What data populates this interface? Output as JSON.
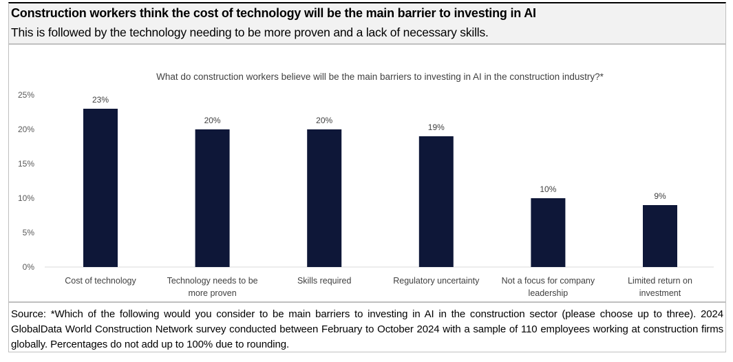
{
  "header": {
    "title": "Construction workers think the cost of technology will be the main barrier to investing in AI",
    "subtitle": "This is followed by the technology needing to be more proven and a lack of necessary skills."
  },
  "chart_data": {
    "type": "bar",
    "title": "What do construction workers believe will be the main barriers to investing in AI in the construction industry?*",
    "categories": [
      [
        "Cost of technology"
      ],
      [
        "Technology needs to be",
        "more proven"
      ],
      [
        "Skills required"
      ],
      [
        "Regulatory uncertainty"
      ],
      [
        "Not a focus for company",
        "leadership"
      ],
      [
        "Limited return on",
        "investment"
      ]
    ],
    "values": [
      23,
      20,
      20,
      19,
      10,
      9
    ],
    "data_labels": [
      "23%",
      "20%",
      "20%",
      "19%",
      "10%",
      "9%"
    ],
    "yticks": [
      "0%",
      "5%",
      "10%",
      "15%",
      "20%",
      "25%"
    ],
    "ylim": [
      0,
      25
    ],
    "grid": false,
    "bar_color": "#0e1738"
  },
  "footer": {
    "source": "Source: *Which of the following would you consider to be main barriers to investing in AI in the construction sector (please choose up to three). 2024 GlobalData World Construction Network survey conducted between February to October 2024 with a sample of 110 employees working at construction firms globally. Percentages do not add up to 100% due to rounding."
  }
}
